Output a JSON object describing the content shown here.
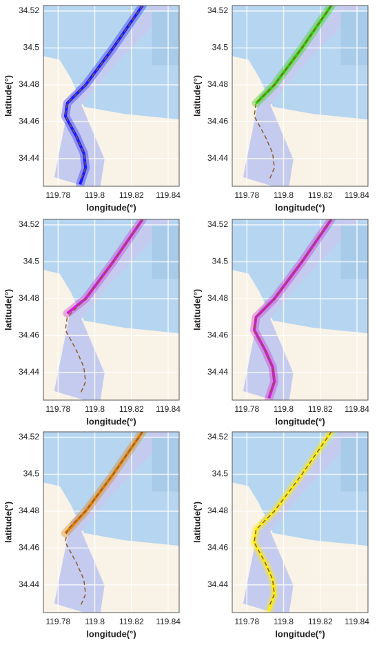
{
  "chart_data": [
    {
      "type": "line",
      "x_label": "longitude(°)",
      "y_label": "latitude(°)",
      "xlim": [
        119.772,
        119.846
      ],
      "ylim": [
        34.425,
        34.523
      ],
      "xticks": [
        119.78,
        119.8,
        119.82,
        119.84
      ],
      "yticks": [
        34.44,
        34.46,
        34.48,
        34.5,
        34.52
      ],
      "series": [
        {
          "color": "#1a1aff",
          "style": "solid",
          "x": [
            119.826,
            119.81,
            119.795,
            119.785,
            119.784,
            119.79,
            119.794,
            119.795,
            119.792
          ],
          "values": [
            34.523,
            34.5,
            34.48,
            34.47,
            34.463,
            34.452,
            34.443,
            34.435,
            34.426
          ]
        },
        {
          "color": "#8b5a2b",
          "style": "dashed",
          "x": [
            119.826,
            119.81,
            119.795,
            119.785,
            119.784,
            119.79,
            119.794,
            119.795,
            119.792
          ],
          "values": [
            34.523,
            34.5,
            34.48,
            34.47,
            34.463,
            34.452,
            34.443,
            34.435,
            34.428
          ]
        }
      ]
    },
    {
      "type": "line",
      "x_label": "longitude(°)",
      "y_label": "latitude(°)",
      "xlim": [
        119.772,
        119.846
      ],
      "ylim": [
        34.425,
        34.523
      ],
      "xticks": [
        119.78,
        119.8,
        119.82,
        119.84
      ],
      "yticks": [
        34.44,
        34.46,
        34.48,
        34.5,
        34.52
      ],
      "series": [
        {
          "color": "#33cc00",
          "style": "solid",
          "x": [
            119.826,
            119.81,
            119.795,
            119.785
          ],
          "values": [
            34.523,
            34.5,
            34.48,
            34.47
          ]
        },
        {
          "color": "#8b5a2b",
          "style": "dashed",
          "x": [
            119.826,
            119.81,
            119.795,
            119.785,
            119.784,
            119.79,
            119.794,
            119.795,
            119.792
          ],
          "values": [
            34.523,
            34.5,
            34.48,
            34.47,
            34.463,
            34.452,
            34.443,
            34.435,
            34.428
          ]
        }
      ]
    },
    {
      "type": "line",
      "x_label": "longitude(°)",
      "y_label": "latitude(°)",
      "xlim": [
        119.772,
        119.846
      ],
      "ylim": [
        34.425,
        34.523
      ],
      "xticks": [
        119.78,
        119.8,
        119.82,
        119.84
      ],
      "yticks": [
        34.44,
        34.46,
        34.48,
        34.5,
        34.52
      ],
      "series": [
        {
          "color": "#cc22cc",
          "style": "solid",
          "x": [
            119.826,
            119.81,
            119.795,
            119.785
          ],
          "values": [
            34.523,
            34.5,
            34.48,
            34.472
          ]
        },
        {
          "color": "#8b5a2b",
          "style": "dashed",
          "x": [
            119.826,
            119.81,
            119.795,
            119.785,
            119.784,
            119.79,
            119.794,
            119.795,
            119.792
          ],
          "values": [
            34.523,
            34.5,
            34.48,
            34.47,
            34.463,
            34.452,
            34.443,
            34.435,
            34.428
          ]
        }
      ]
    },
    {
      "type": "line",
      "x_label": "longitude(°)",
      "y_label": "latitude(°)",
      "xlim": [
        119.772,
        119.846
      ],
      "ylim": [
        34.425,
        34.523
      ],
      "xticks": [
        119.78,
        119.8,
        119.82,
        119.84
      ],
      "yticks": [
        34.44,
        34.46,
        34.48,
        34.5,
        34.52
      ],
      "series": [
        {
          "color": "#cc22cc",
          "style": "solid",
          "x": [
            119.826,
            119.81,
            119.795,
            119.785,
            119.784,
            119.79,
            119.794,
            119.795,
            119.792
          ],
          "values": [
            34.523,
            34.5,
            34.48,
            34.47,
            34.463,
            34.452,
            34.443,
            34.435,
            34.426
          ]
        },
        {
          "color": "#8b5a2b",
          "style": "dashed",
          "x": [
            119.826,
            119.81,
            119.795,
            119.785,
            119.784,
            119.79,
            119.794,
            119.795,
            119.792
          ],
          "values": [
            34.523,
            34.5,
            34.48,
            34.47,
            34.463,
            34.452,
            34.443,
            34.435,
            34.428
          ]
        }
      ]
    },
    {
      "type": "line",
      "x_label": "longitude(°)",
      "y_label": "latitude(°)",
      "xlim": [
        119.772,
        119.846
      ],
      "ylim": [
        34.425,
        34.523
      ],
      "xticks": [
        119.78,
        119.8,
        119.82,
        119.84
      ],
      "yticks": [
        34.44,
        34.46,
        34.48,
        34.5,
        34.52
      ],
      "series": [
        {
          "color": "#e07b00",
          "style": "solid",
          "x": [
            119.826,
            119.81,
            119.795,
            119.784
          ],
          "values": [
            34.523,
            34.5,
            34.48,
            34.468
          ]
        },
        {
          "color": "#8b5a2b",
          "style": "dashed",
          "x": [
            119.826,
            119.81,
            119.795,
            119.785,
            119.784,
            119.79,
            119.794,
            119.795,
            119.792
          ],
          "values": [
            34.523,
            34.5,
            34.48,
            34.47,
            34.463,
            34.452,
            34.443,
            34.435,
            34.428
          ]
        }
      ]
    },
    {
      "type": "line",
      "x_label": "longitude(°)",
      "y_label": "latitude(°)",
      "xlim": [
        119.772,
        119.846
      ],
      "ylim": [
        34.425,
        34.523
      ],
      "xticks": [
        119.78,
        119.8,
        119.82,
        119.84
      ],
      "yticks": [
        34.44,
        34.46,
        34.48,
        34.5,
        34.52
      ],
      "series": [
        {
          "color": "#ffee00",
          "style": "solid",
          "x": [
            119.826,
            119.81,
            119.795,
            119.785,
            119.784,
            119.79,
            119.794,
            119.795,
            119.792
          ],
          "values": [
            34.523,
            34.5,
            34.48,
            34.47,
            34.463,
            34.452,
            34.443,
            34.435,
            34.426
          ]
        },
        {
          "color": "#8b5a2b",
          "style": "dashed",
          "x": [
            119.826,
            119.81,
            119.795,
            119.785,
            119.784,
            119.79,
            119.794,
            119.795,
            119.792
          ],
          "values": [
            34.523,
            34.5,
            34.48,
            34.47,
            34.463,
            34.452,
            34.443,
            34.435,
            34.428
          ]
        }
      ]
    }
  ]
}
